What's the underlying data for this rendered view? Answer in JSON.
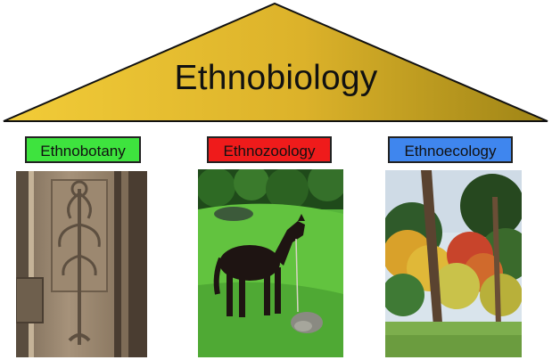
{
  "title": "Ethnobiology",
  "branches": [
    {
      "label": "Ethnobotany",
      "color": "#3ee33e",
      "image_subject": "carved stone plant ornament"
    },
    {
      "label": "Ethnozoology",
      "color": "#ef1b1b",
      "image_subject": "dark horse on grass"
    },
    {
      "label": "Ethnoecology",
      "color": "#3f86ee",
      "image_subject": "trees and autumn forest"
    }
  ],
  "colors": {
    "roof": "#e0b52a",
    "roof_dark": "#a88a18",
    "background": "#ffffff"
  }
}
